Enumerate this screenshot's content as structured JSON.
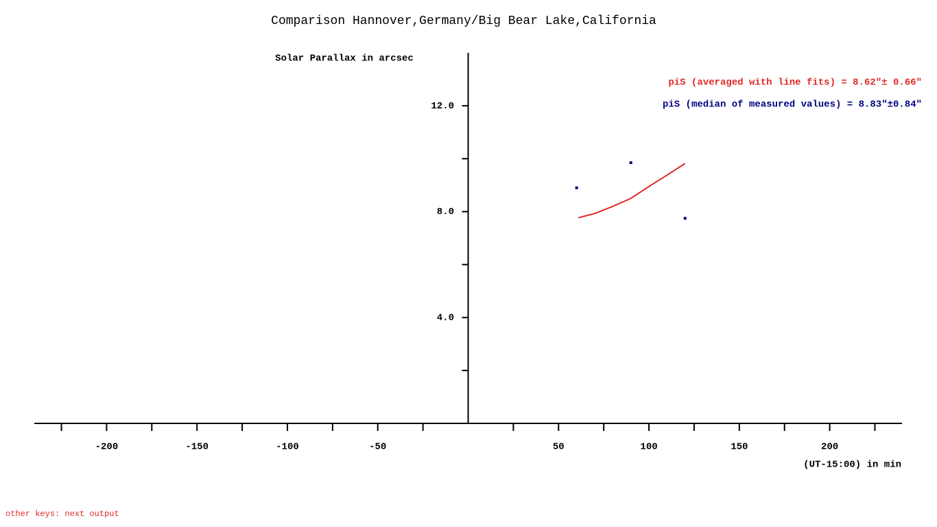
{
  "chart_data": {
    "type": "scatter",
    "title": "Comparison Hannover,Germany/Big Bear Lake,California",
    "ylabel": "Solar Parallax in arcsec",
    "xlabel": "(UT-15:00) in min",
    "annotations": [
      {
        "text": "piS (averaged with line fits) = 8.62\"± 0.66\"",
        "color": "#e02828"
      },
      {
        "text": "piS (median of measured values) = 8.83\"±0.84\"",
        "color": "#000080"
      }
    ],
    "xlim": [
      -240,
      240
    ],
    "xticks": [
      -200,
      -150,
      -100,
      -50,
      50,
      100,
      150,
      200
    ],
    "minor_xticks": [
      -225,
      -175,
      -125,
      -75,
      -25,
      25,
      75,
      125,
      175,
      225
    ],
    "ylim": [
      0,
      14
    ],
    "yticks": [
      {
        "value": 4,
        "label": "4.0"
      },
      {
        "value": 8,
        "label": "8.0"
      },
      {
        "value": 12,
        "label": "12.0"
      }
    ],
    "minor_yticks": [
      2,
      6,
      10
    ],
    "series": [
      {
        "type": "scatter",
        "color": "#000080",
        "x": [
          60,
          90,
          120
        ],
        "values": [
          8.9,
          9.85,
          7.75
        ]
      },
      {
        "type": "line",
        "color": "#e02828",
        "x": [
          61,
          70,
          80,
          90,
          100,
          110,
          120
        ],
        "values": [
          7.77,
          7.93,
          8.2,
          8.5,
          8.95,
          9.38,
          9.82
        ]
      }
    ]
  },
  "footer": "other keys: next output"
}
